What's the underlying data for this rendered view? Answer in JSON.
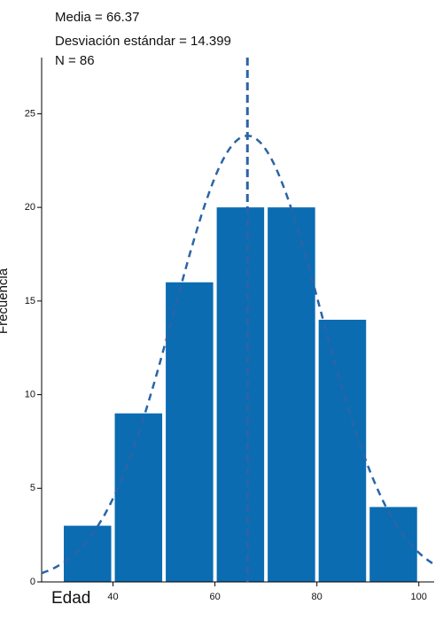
{
  "chart_data": {
    "type": "histogram",
    "stats": [
      {
        "value": 66.37,
        "label": "Media = 66.37"
      },
      {
        "value": 14.399,
        "label": "Desviación estándar = 14.399"
      },
      {
        "value": 86,
        "label": "N = 86"
      }
    ],
    "x_label": "Edad",
    "y_label": "Frecuencia",
    "bins": [
      30,
      40,
      50,
      60,
      70,
      80,
      90,
      100
    ],
    "values": [
      3,
      9,
      16,
      20,
      20,
      14,
      4
    ],
    "color": "#0b6cb2",
    "curve_color": "#2b64a6",
    "xlim": [
      26,
      103
    ],
    "xticks": [
      40,
      60,
      80,
      100
    ],
    "ylim": [
      0,
      28
    ],
    "yticks": [
      0,
      5,
      10,
      15,
      20,
      25
    ],
    "grid": false
  }
}
